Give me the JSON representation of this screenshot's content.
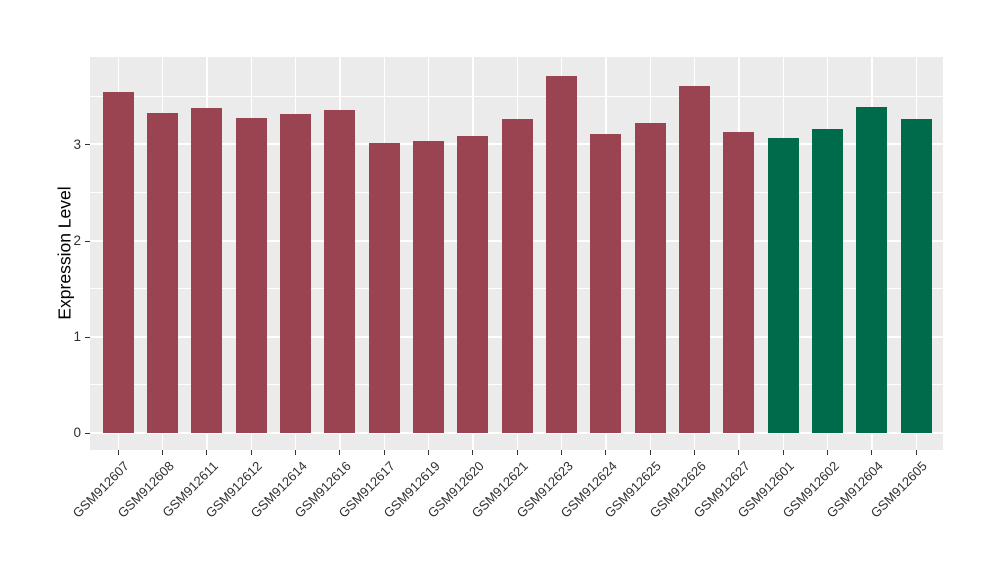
{
  "figure": {
    "y_axis_title": "Expression Level"
  },
  "chart_data": {
    "type": "bar",
    "title": "",
    "xlabel": "",
    "ylabel": "Expression Level",
    "categories": [
      "GSM912607",
      "GSM912608",
      "GSM912611",
      "GSM912612",
      "GSM912614",
      "GSM912616",
      "GSM912617",
      "GSM912619",
      "GSM912620",
      "GSM912621",
      "GSM912623",
      "GSM912624",
      "GSM912625",
      "GSM912626",
      "GSM912627",
      "GSM912601",
      "GSM912602",
      "GSM912604",
      "GSM912605"
    ],
    "values": [
      3.55,
      3.33,
      3.38,
      3.27,
      3.32,
      3.36,
      3.02,
      3.04,
      3.09,
      3.26,
      3.71,
      3.11,
      3.22,
      3.61,
      3.13,
      3.07,
      3.16,
      3.39,
      3.26
    ],
    "groups": [
      "red",
      "red",
      "red",
      "red",
      "red",
      "red",
      "red",
      "red",
      "red",
      "red",
      "red",
      "red",
      "red",
      "red",
      "red",
      "green",
      "green",
      "green",
      "green"
    ],
    "group_colors": {
      "red": "#9B4451",
      "green": "#006B4A"
    },
    "yticks": [
      0,
      1,
      2,
      3
    ],
    "minor_yticks": [
      0.5,
      1.5,
      2.5,
      3.5
    ],
    "ylim": [
      -0.18,
      3.91
    ],
    "grid": "on",
    "legend": "none",
    "panel_background": "#EBEBEB",
    "gridline_color": "#FFFFFF",
    "tick_color": "#333333",
    "axis_text_color": "#303030"
  }
}
